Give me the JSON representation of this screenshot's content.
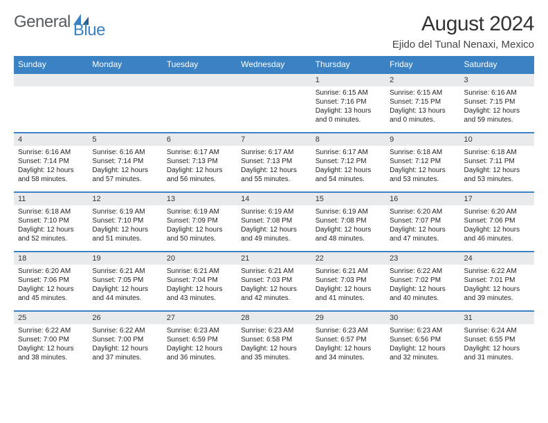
{
  "logo": {
    "text1": "General",
    "text2": "Blue"
  },
  "title": "August 2024",
  "location": "Ejido del Tunal Nenaxi, Mexico",
  "colors": {
    "header_bg": "#3b82c4",
    "header_text": "#ffffff",
    "daynum_bg": "#e9eaeb",
    "accent": "#3b82c4",
    "logo_gray": "#555b60",
    "logo_blue": "#3b82c4"
  },
  "day_names": [
    "Sunday",
    "Monday",
    "Tuesday",
    "Wednesday",
    "Thursday",
    "Friday",
    "Saturday"
  ],
  "weeks": [
    [
      null,
      null,
      null,
      null,
      {
        "n": "1",
        "sunrise": "6:15 AM",
        "sunset": "7:16 PM",
        "daylight": "13 hours and 0 minutes."
      },
      {
        "n": "2",
        "sunrise": "6:15 AM",
        "sunset": "7:15 PM",
        "daylight": "13 hours and 0 minutes."
      },
      {
        "n": "3",
        "sunrise": "6:16 AM",
        "sunset": "7:15 PM",
        "daylight": "12 hours and 59 minutes."
      }
    ],
    [
      {
        "n": "4",
        "sunrise": "6:16 AM",
        "sunset": "7:14 PM",
        "daylight": "12 hours and 58 minutes."
      },
      {
        "n": "5",
        "sunrise": "6:16 AM",
        "sunset": "7:14 PM",
        "daylight": "12 hours and 57 minutes."
      },
      {
        "n": "6",
        "sunrise": "6:17 AM",
        "sunset": "7:13 PM",
        "daylight": "12 hours and 56 minutes."
      },
      {
        "n": "7",
        "sunrise": "6:17 AM",
        "sunset": "7:13 PM",
        "daylight": "12 hours and 55 minutes."
      },
      {
        "n": "8",
        "sunrise": "6:17 AM",
        "sunset": "7:12 PM",
        "daylight": "12 hours and 54 minutes."
      },
      {
        "n": "9",
        "sunrise": "6:18 AM",
        "sunset": "7:12 PM",
        "daylight": "12 hours and 53 minutes."
      },
      {
        "n": "10",
        "sunrise": "6:18 AM",
        "sunset": "7:11 PM",
        "daylight": "12 hours and 53 minutes."
      }
    ],
    [
      {
        "n": "11",
        "sunrise": "6:18 AM",
        "sunset": "7:10 PM",
        "daylight": "12 hours and 52 minutes."
      },
      {
        "n": "12",
        "sunrise": "6:19 AM",
        "sunset": "7:10 PM",
        "daylight": "12 hours and 51 minutes."
      },
      {
        "n": "13",
        "sunrise": "6:19 AM",
        "sunset": "7:09 PM",
        "daylight": "12 hours and 50 minutes."
      },
      {
        "n": "14",
        "sunrise": "6:19 AM",
        "sunset": "7:08 PM",
        "daylight": "12 hours and 49 minutes."
      },
      {
        "n": "15",
        "sunrise": "6:19 AM",
        "sunset": "7:08 PM",
        "daylight": "12 hours and 48 minutes."
      },
      {
        "n": "16",
        "sunrise": "6:20 AM",
        "sunset": "7:07 PM",
        "daylight": "12 hours and 47 minutes."
      },
      {
        "n": "17",
        "sunrise": "6:20 AM",
        "sunset": "7:06 PM",
        "daylight": "12 hours and 46 minutes."
      }
    ],
    [
      {
        "n": "18",
        "sunrise": "6:20 AM",
        "sunset": "7:06 PM",
        "daylight": "12 hours and 45 minutes."
      },
      {
        "n": "19",
        "sunrise": "6:21 AM",
        "sunset": "7:05 PM",
        "daylight": "12 hours and 44 minutes."
      },
      {
        "n": "20",
        "sunrise": "6:21 AM",
        "sunset": "7:04 PM",
        "daylight": "12 hours and 43 minutes."
      },
      {
        "n": "21",
        "sunrise": "6:21 AM",
        "sunset": "7:03 PM",
        "daylight": "12 hours and 42 minutes."
      },
      {
        "n": "22",
        "sunrise": "6:21 AM",
        "sunset": "7:03 PM",
        "daylight": "12 hours and 41 minutes."
      },
      {
        "n": "23",
        "sunrise": "6:22 AM",
        "sunset": "7:02 PM",
        "daylight": "12 hours and 40 minutes."
      },
      {
        "n": "24",
        "sunrise": "6:22 AM",
        "sunset": "7:01 PM",
        "daylight": "12 hours and 39 minutes."
      }
    ],
    [
      {
        "n": "25",
        "sunrise": "6:22 AM",
        "sunset": "7:00 PM",
        "daylight": "12 hours and 38 minutes."
      },
      {
        "n": "26",
        "sunrise": "6:22 AM",
        "sunset": "7:00 PM",
        "daylight": "12 hours and 37 minutes."
      },
      {
        "n": "27",
        "sunrise": "6:23 AM",
        "sunset": "6:59 PM",
        "daylight": "12 hours and 36 minutes."
      },
      {
        "n": "28",
        "sunrise": "6:23 AM",
        "sunset": "6:58 PM",
        "daylight": "12 hours and 35 minutes."
      },
      {
        "n": "29",
        "sunrise": "6:23 AM",
        "sunset": "6:57 PM",
        "daylight": "12 hours and 34 minutes."
      },
      {
        "n": "30",
        "sunrise": "6:23 AM",
        "sunset": "6:56 PM",
        "daylight": "12 hours and 32 minutes."
      },
      {
        "n": "31",
        "sunrise": "6:24 AM",
        "sunset": "6:55 PM",
        "daylight": "12 hours and 31 minutes."
      }
    ]
  ],
  "labels": {
    "sunrise": "Sunrise: ",
    "sunset": "Sunset: ",
    "daylight": "Daylight: "
  }
}
